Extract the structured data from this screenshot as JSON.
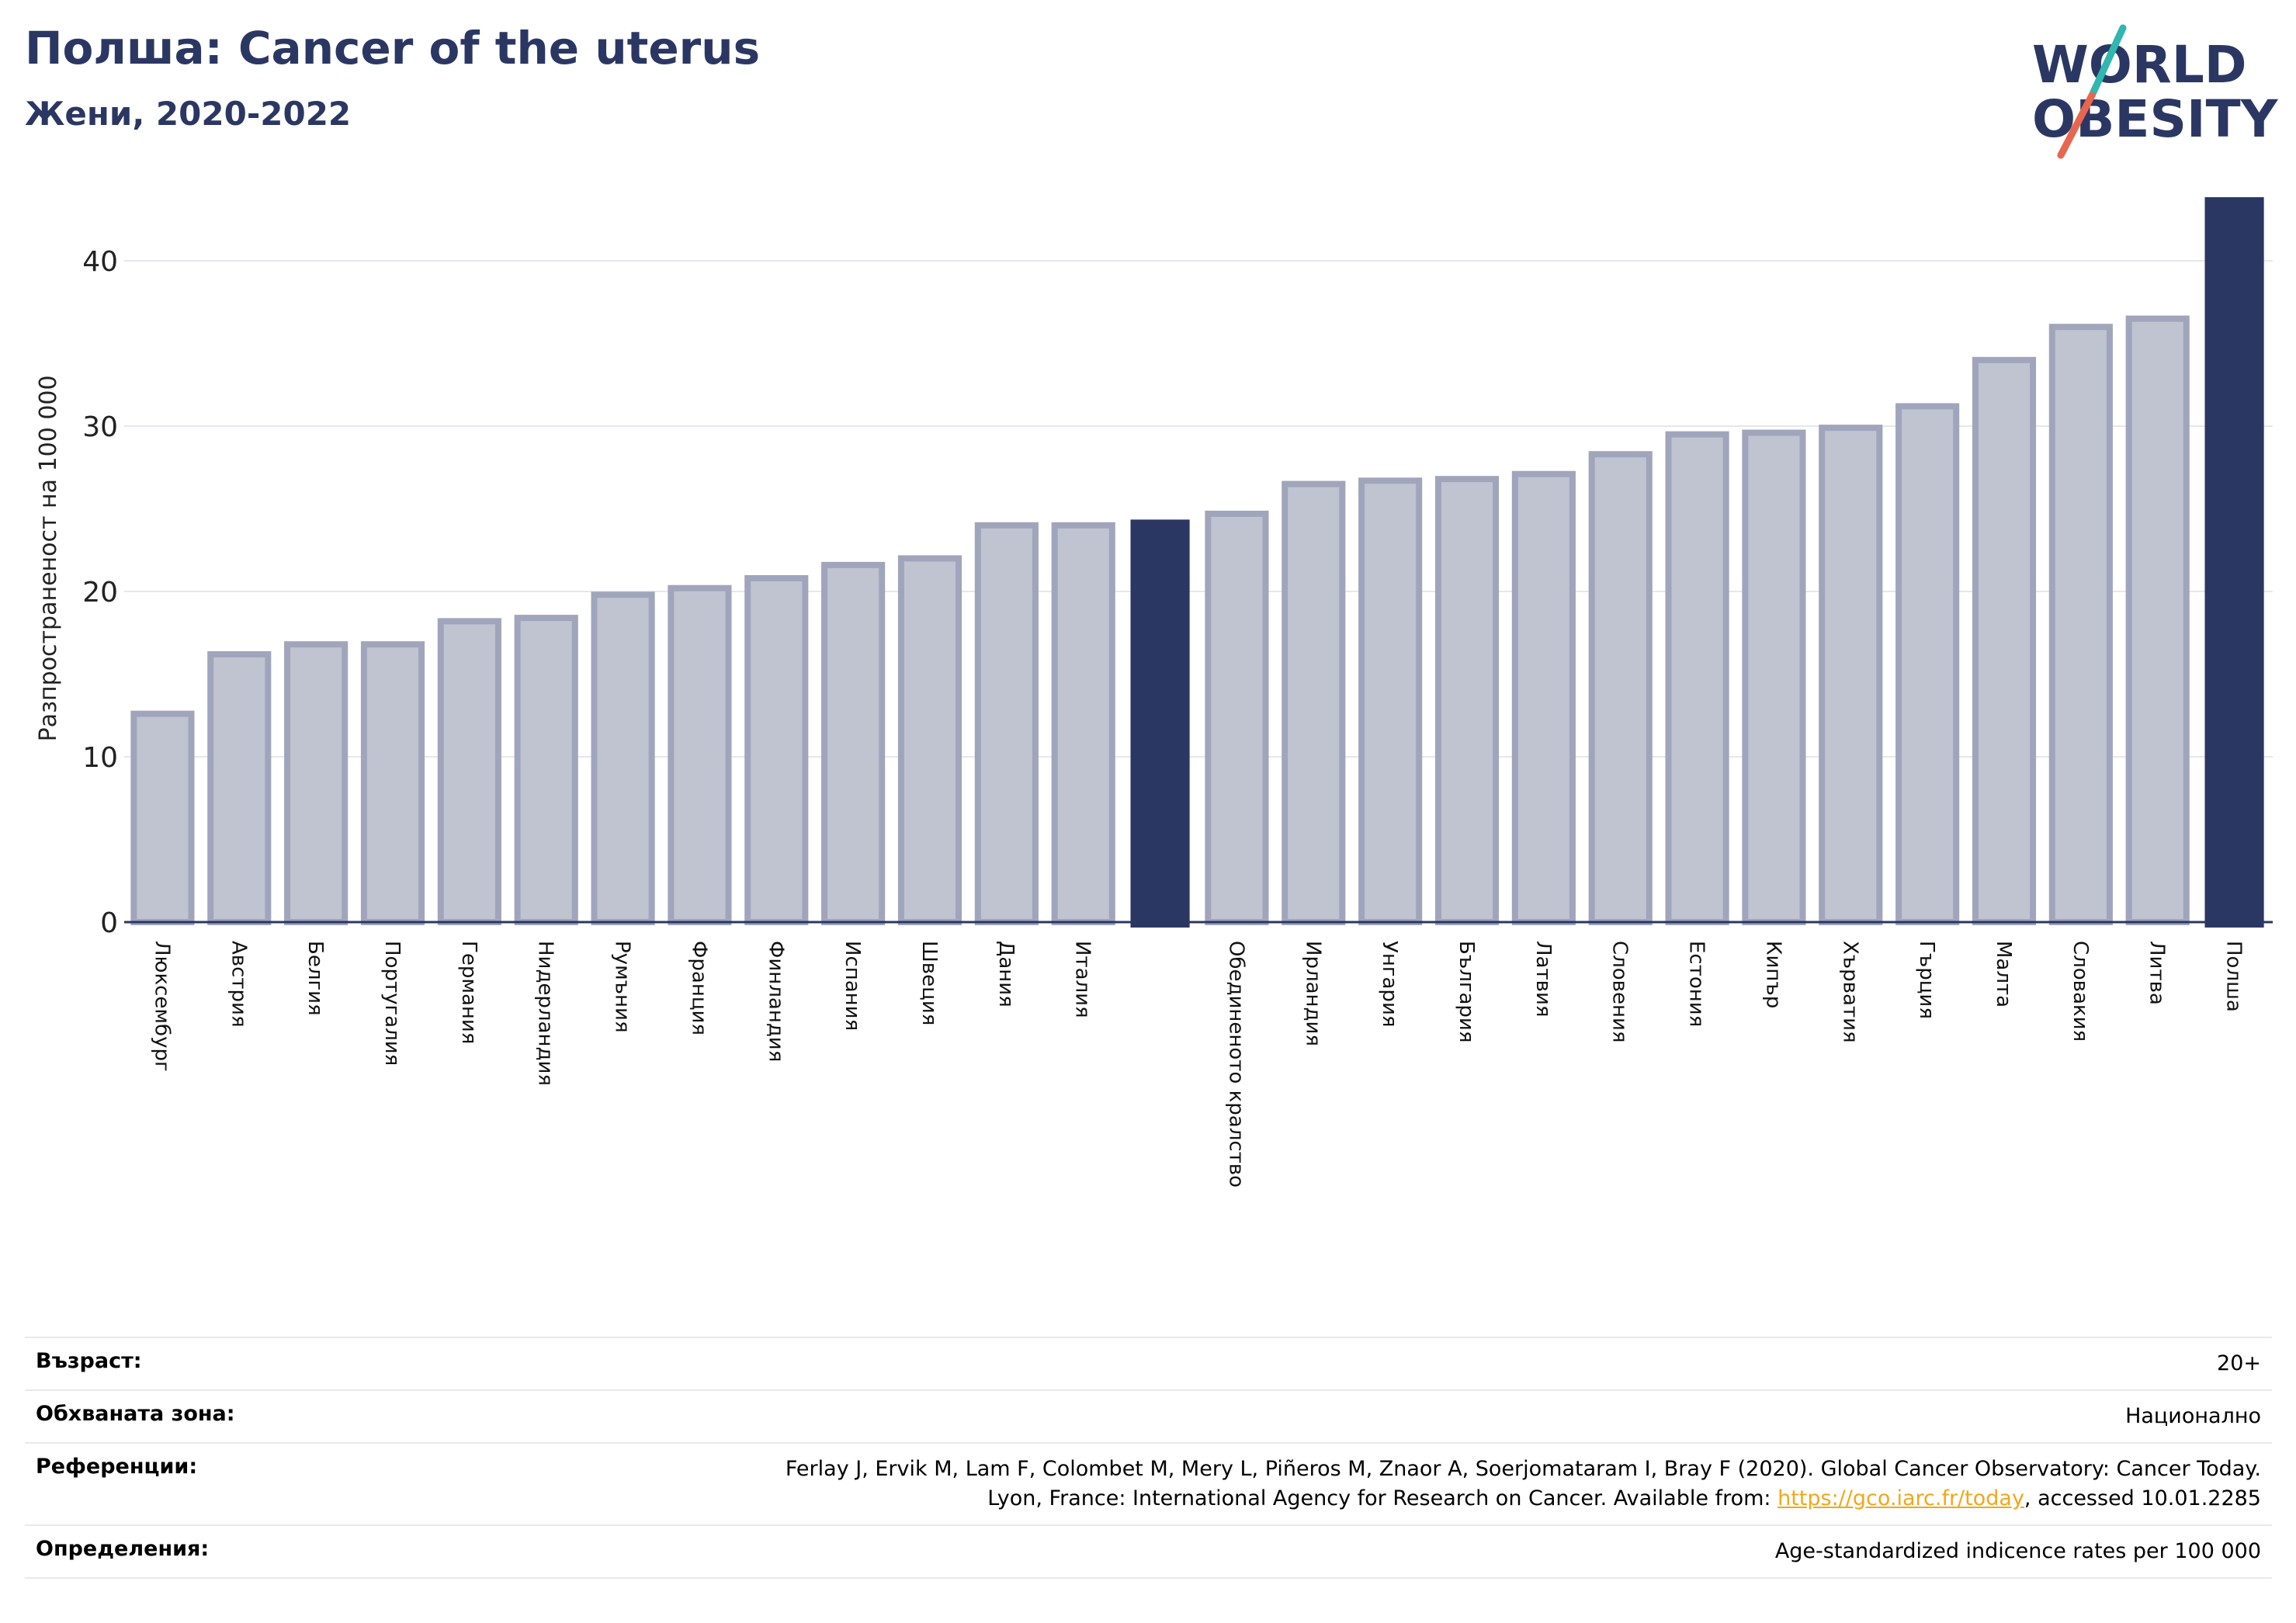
{
  "header": {
    "title": "Полша: Cancer of the uterus",
    "subtitle": "Жени, 2020-2022"
  },
  "logo": {
    "line1": "WORLD",
    "line2": "OBESITY"
  },
  "colors": {
    "highlight": "#2b3763",
    "bar_fill": "#c0c3d0",
    "bar_stroke": "#a0a5bc",
    "link": "#f2a71b"
  },
  "chart_data": {
    "type": "bar",
    "ylabel": "Разпространеност  на 100 000",
    "ylim": [
      0,
      44
    ],
    "yticks": [
      0,
      10,
      20,
      30,
      40
    ],
    "grid": true,
    "categories": [
      "Люксембург",
      "Австрия",
      "Белгия",
      "Португалия",
      "Германия",
      "Нидерландия",
      "Румъния",
      "Франция",
      "Финландия",
      "Испания",
      "Швеция",
      "Дания",
      "Италия",
      "",
      "Обединеното кралство",
      "Ирландия",
      "Унгария",
      "България",
      "Латвия",
      "Словения",
      "Естония",
      "Кипър",
      "Хърватия",
      "Гърция",
      "Малта",
      "Словакия",
      "Литва",
      "Полша"
    ],
    "values": [
      12.6,
      16.2,
      16.8,
      16.8,
      18.2,
      18.4,
      19.8,
      20.2,
      20.8,
      21.6,
      22.0,
      24.0,
      24.0,
      24.3,
      24.7,
      26.5,
      26.7,
      26.8,
      27.1,
      28.3,
      29.5,
      29.6,
      29.9,
      31.2,
      34.0,
      36.0,
      36.5,
      43.8
    ],
    "highlight": [
      false,
      false,
      false,
      false,
      false,
      false,
      false,
      false,
      false,
      false,
      false,
      false,
      false,
      true,
      false,
      false,
      false,
      false,
      false,
      false,
      false,
      false,
      false,
      false,
      false,
      false,
      false,
      true
    ]
  },
  "meta": {
    "age_label": "Възраст:",
    "age_value": "20+",
    "area_label": "Обхваната зона:",
    "area_value": "Национално",
    "ref_label": "Референции:",
    "ref_line1": "Ferlay J, Ervik M, Lam F, Colombet M, Mery L, Piñeros M, Znaor A, Soerjomataram I, Bray F (2020). Global Cancer Observatory: Cancer Today.",
    "ref_line2_prefix": "Lyon, France: International Agency for Research on Cancer. Available from: ",
    "ref_link": "https://gco.iarc.fr/today",
    "ref_line2_suffix": ", accessed 10.01.2285",
    "def_label": "Определения:",
    "def_value": "Age-standardized indicence rates per 100 000"
  }
}
